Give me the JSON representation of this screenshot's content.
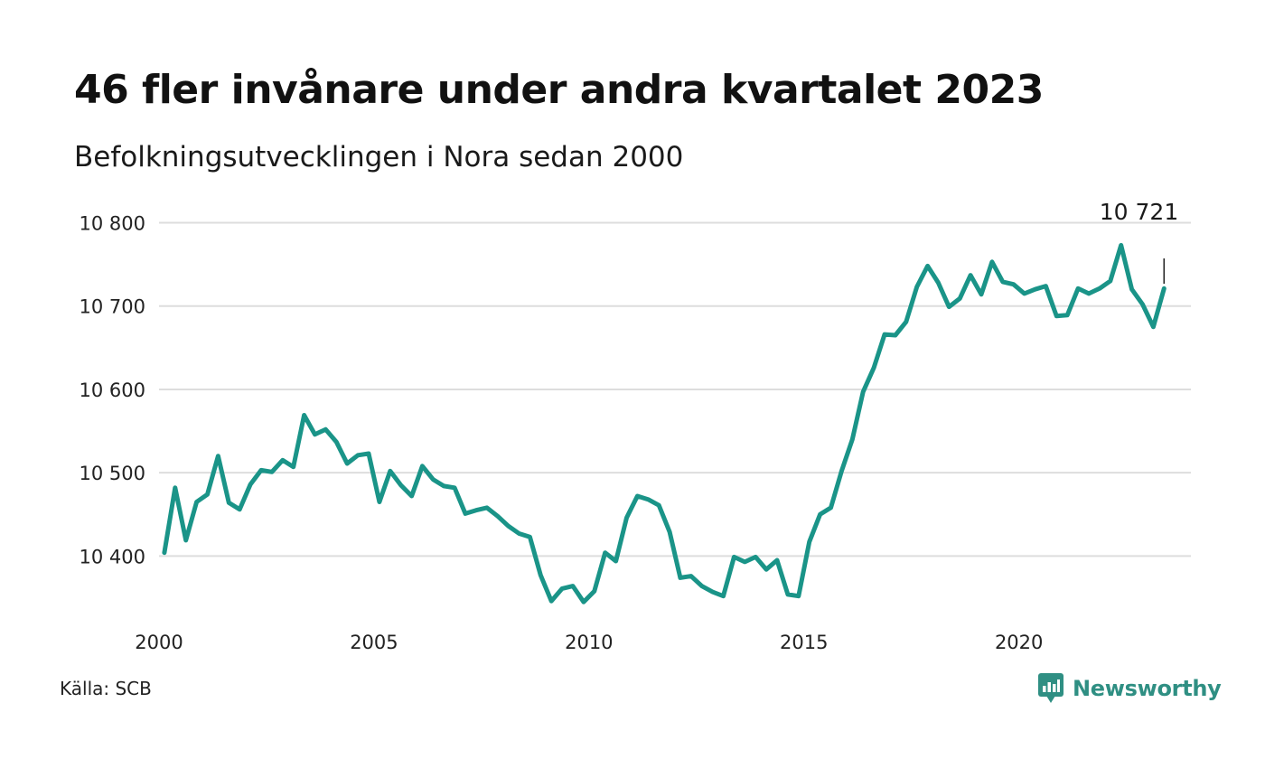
{
  "colors": {
    "line": "#1a9488",
    "grid": "#dddddd",
    "brand": "#2f8f83"
  },
  "source": "Källa: SCB",
  "brand": {
    "name": "Newsworthy",
    "icon": "newsworthy-logo-icon"
  },
  "chart_data": {
    "type": "line",
    "title": "46 fler invånare under andra kvartalet 2023",
    "subtitle": "Befolkningsutvecklingen i Nora sedan 2000",
    "xlabel": "",
    "ylabel": "",
    "xlim": [
      2000,
      2024
    ],
    "ylim": [
      10330,
      10820
    ],
    "x_ticks": [
      2000,
      2005,
      2010,
      2015,
      2020
    ],
    "x_tick_labels": [
      "2000",
      "2005",
      "2010",
      "2015",
      "2020"
    ],
    "y_ticks": [
      10400,
      10500,
      10600,
      10700,
      10800
    ],
    "y_tick_labels": [
      "10 400",
      "10 500",
      "10 600",
      "10 700",
      "10 800"
    ],
    "grid": "horizontal",
    "legend": "none",
    "frequency": "quarterly",
    "x_start": "2000 Q1",
    "annotation": {
      "text": "10 721",
      "x": 2023.375,
      "y": 10721
    },
    "series": [
      {
        "values": [
          10404,
          10482,
          10419,
          10465,
          10474,
          10520,
          10464,
          10456,
          10486,
          10503,
          10501,
          10515,
          10507,
          10569,
          10546,
          10552,
          10537,
          10511,
          10521,
          10523,
          10465,
          10502,
          10485,
          10472,
          10508,
          10492,
          10484,
          10482,
          10451,
          10455,
          10458,
          10448,
          10436,
          10427,
          10423,
          10377,
          10346,
          10361,
          10364,
          10345,
          10358,
          10404,
          10394,
          10446,
          10472,
          10468,
          10461,
          10429,
          10374,
          10376,
          10364,
          10357,
          10352,
          10399,
          10393,
          10399,
          10384,
          10395,
          10354,
          10352,
          10417,
          10450,
          10458,
          10502,
          10540,
          10597,
          10626,
          10666,
          10665,
          10681,
          10723,
          10748,
          10728,
          10699,
          10709,
          10737,
          10714,
          10753,
          10729,
          10726,
          10715,
          10720,
          10724,
          10688,
          10689,
          10721,
          10715,
          10721,
          10730,
          10773,
          10720,
          10702,
          10675,
          10721
        ]
      }
    ]
  }
}
